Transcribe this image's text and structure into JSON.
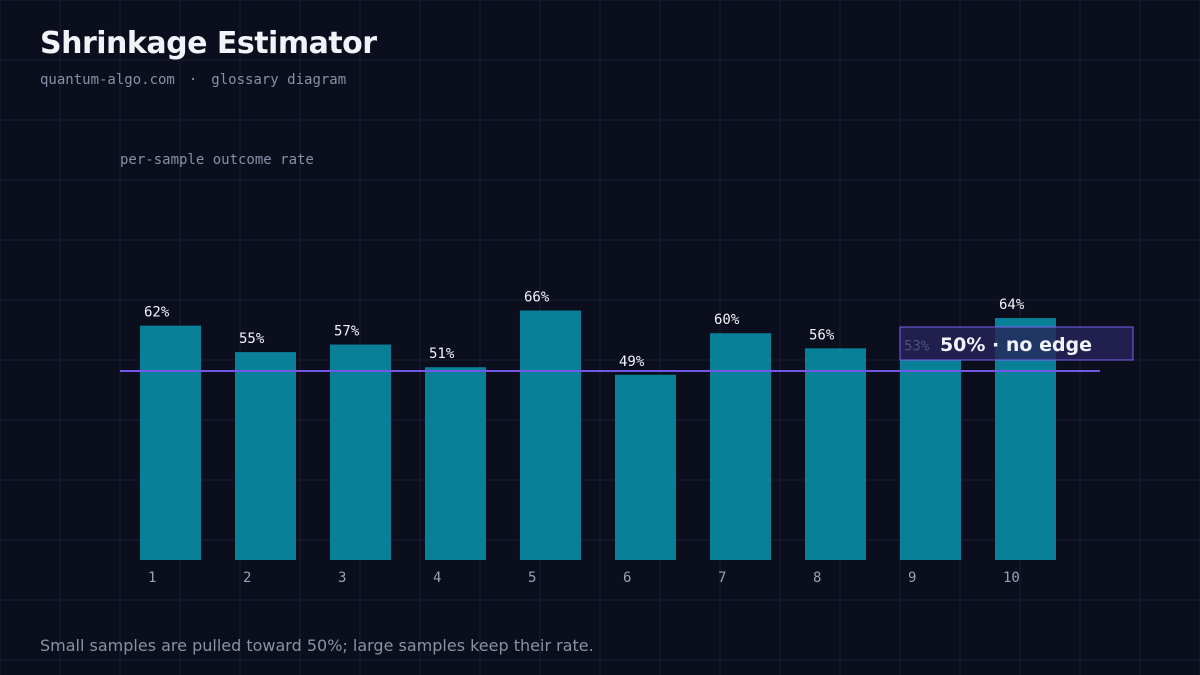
{
  "header": {
    "title": "Shrinkage Estimator",
    "site": "quantum-algo.com",
    "separator": "·",
    "kind": "glossary diagram"
  },
  "caption": "Small samples are pulled toward 50%; large samples keep their rate.",
  "colors": {
    "background": "#0b0e1c",
    "bar": "#0a8aa2",
    "reference_line": "#7257e6",
    "label_box_fill": "#27245a",
    "label_box_stroke": "#7a63f0",
    "text": "#f2f3f8",
    "muted_text": "#8790a6"
  },
  "chart_data": {
    "type": "bar",
    "ylabel": "per-sample outcome rate",
    "categories": [
      "1",
      "2",
      "3",
      "4",
      "5",
      "6",
      "7",
      "8",
      "9",
      "10"
    ],
    "values": [
      62,
      55,
      57,
      51,
      66,
      49,
      60,
      56,
      53,
      64
    ],
    "data_labels": [
      "62%",
      "55%",
      "57%",
      "51%",
      "66%",
      "49%",
      "60%",
      "56%",
      "53%",
      "64%"
    ],
    "ylim": [
      0,
      100
    ],
    "reference_line": {
      "value": 50,
      "label": "50% · no edge"
    },
    "grid": true
  }
}
